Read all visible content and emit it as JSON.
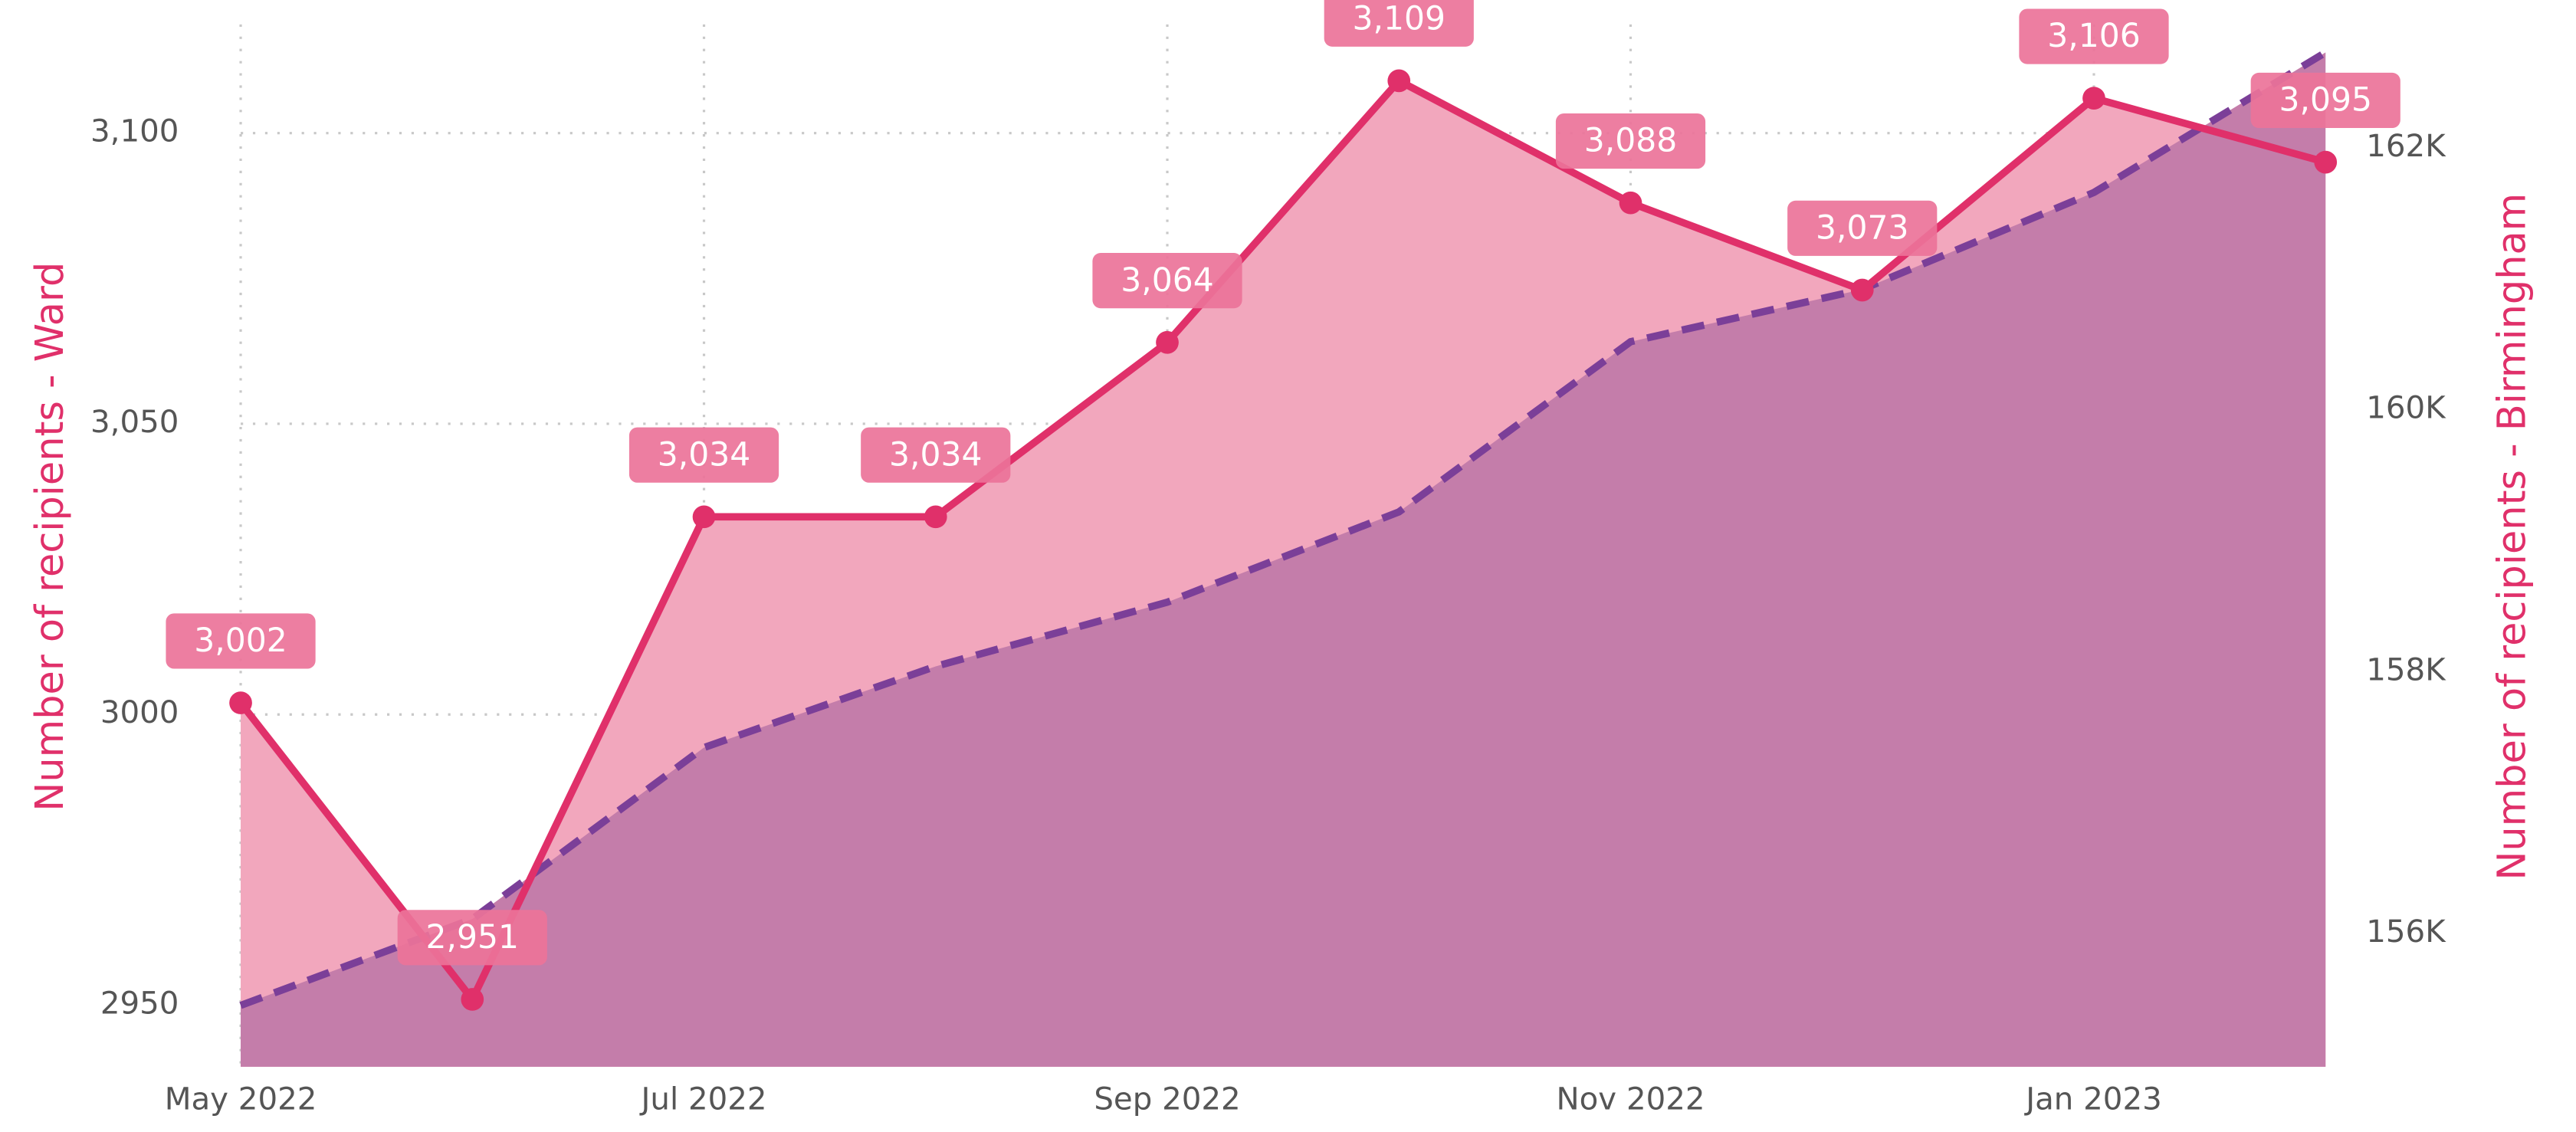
{
  "chart_data": {
    "type": "line",
    "categories": [
      "May 2022",
      null,
      "Jul 2022",
      null,
      "Sep 2022",
      null,
      "Nov 2022",
      null,
      "Jan 2023",
      null
    ],
    "series": [
      {
        "name": "Number of recipients - Ward",
        "color": "#e0306a",
        "area_color": "#f2a7bd",
        "values": [
          3002,
          2951,
          3034,
          3034,
          3064,
          3109,
          3088,
          3073,
          3106,
          3095
        ],
        "value_labels": [
          "3,002",
          "2,951",
          "3,034",
          "3,034",
          "3,064",
          "3,109",
          "3,088",
          "3,073",
          "3,106",
          "3,095"
        ]
      },
      {
        "name": "Number of recipients - Birmingham",
        "color": "#7b3f98",
        "area_color": "#c47daa",
        "axis": "y2",
        "values": [
          155450,
          156110,
          157420,
          158040,
          158530,
          159220,
          160520,
          160920,
          161660,
          162730
        ]
      }
    ],
    "ylabel": "Number of recipients - Ward",
    "y2label": "Number of recipients - Birmingham",
    "ylim": [
      2939.4,
      3118.7
    ],
    "yticks": [
      2950,
      3000,
      {
        "value": 3050,
        "label": "3,050"
      },
      {
        "value": 3100,
        "label": "3,100"
      }
    ],
    "y2lim": [
      154981,
      162944
    ],
    "y2ticks": [
      {
        "value": 156000,
        "label": "156K"
      },
      {
        "value": 158000,
        "label": "158K"
      },
      {
        "value": 160000,
        "label": "160K"
      },
      {
        "value": 162000,
        "label": "162K"
      }
    ],
    "grid": true
  }
}
